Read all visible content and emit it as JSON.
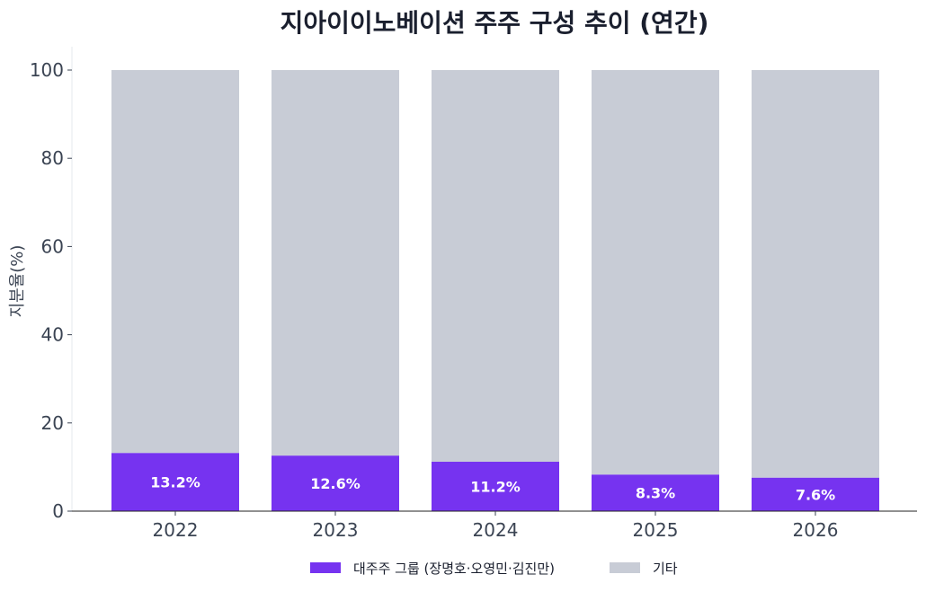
{
  "chart_data": {
    "type": "bar",
    "stacked": true,
    "title": "지아이이노베이션 주주 구성 추이 (연간)",
    "ylabel": "지분율(%)",
    "xlabel": "",
    "categories": [
      "2022",
      "2023",
      "2024",
      "2025",
      "2026"
    ],
    "ylim": [
      0,
      100
    ],
    "yticks": [
      0,
      20,
      40,
      60,
      80,
      100
    ],
    "grid": false,
    "legend_position": "bottom-center",
    "series": [
      {
        "name": "대주주 그룹 (장명호·오영민·김진만)",
        "values": [
          13.2,
          12.6,
          11.2,
          8.3,
          7.6
        ],
        "labels": [
          "13.2%",
          "12.6%",
          "11.2%",
          "8.3%",
          "7.6%"
        ],
        "color": "#7633f0"
      },
      {
        "name": "기타",
        "values": [
          86.8,
          87.4,
          88.8,
          91.7,
          92.4
        ],
        "color": "#c8ccd6"
      }
    ]
  }
}
